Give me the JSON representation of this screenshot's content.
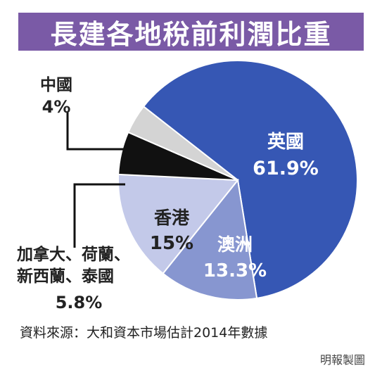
{
  "title": "長建各地稅前利潤比重",
  "source": "資料來源：大和資本市場估計2014年數據",
  "credit": "明報製圖",
  "colors": {
    "title_bg": "#7a5aa6",
    "uk": "#3657b4",
    "aus": "#8796d0",
    "hk": "#c3c9e9",
    "others": "#111111",
    "china": "#d4d4d4"
  },
  "chart_data": {
    "type": "pie",
    "title": "長建各地稅前利潤比重",
    "slices": [
      {
        "label": "英國",
        "value": 61.9,
        "value_label": "61.9%"
      },
      {
        "label": "澳洲",
        "value": 13.3,
        "value_label": "13.3%"
      },
      {
        "label": "香港",
        "value": 15,
        "value_label": "15%"
      },
      {
        "label": "加拿大、荷蘭、新西蘭、泰國",
        "value": 5.8,
        "value_label": "5.8%"
      },
      {
        "label": "中國",
        "value": 4,
        "value_label": "4%"
      }
    ]
  },
  "labels": {
    "uk": {
      "name": "英國",
      "pct": "61.9%"
    },
    "aus": {
      "name": "澳洲",
      "pct": "13.3%"
    },
    "hk": {
      "name": "香港",
      "pct": "15%"
    },
    "others": {
      "line1": "加拿大、荷蘭、",
      "line2": "新西蘭、泰國",
      "pct": "5.8%"
    },
    "china": {
      "name": "中國",
      "pct": "4%"
    }
  }
}
